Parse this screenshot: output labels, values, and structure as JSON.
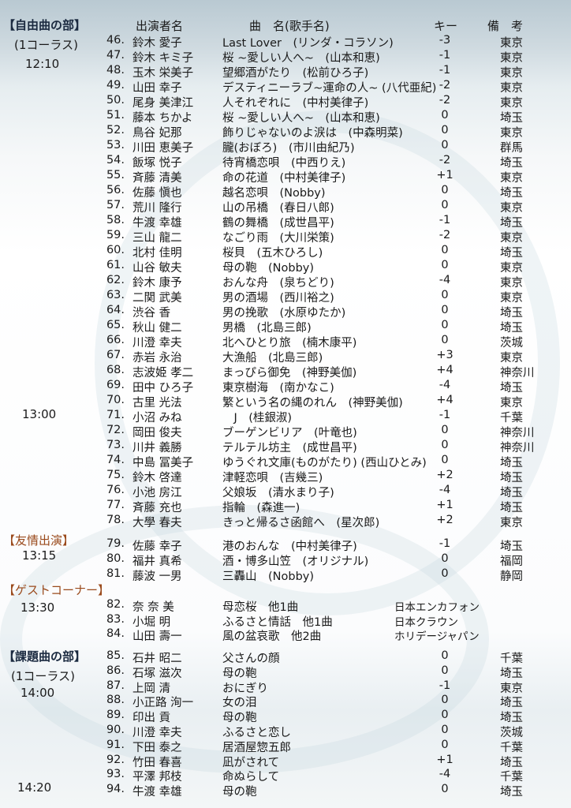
{
  "headers": {
    "performer": "出演者名",
    "song": "曲　名(歌手名)",
    "key": "キー",
    "note": "備　考"
  },
  "left_labels": {
    "free_section": "【自由曲の部】",
    "free_chorus": "(1コーラス)",
    "free_time1": "12:10",
    "free_time2": "13:00",
    "friend_section": "【友情出演】",
    "friend_time": "13:15",
    "guest_section": "【ゲストコーナー】",
    "guest_time": "13:30",
    "task_section": "【課題曲の部】",
    "task_chorus": "(1コーラス)",
    "task_time1": "14:00",
    "task_time2": "14:20"
  },
  "free_rows": [
    {
      "num": "46.",
      "name": "鈴木 愛子",
      "song": "Last Lover　(リンダ・コラソン)",
      "key": "-3",
      "pref": "東京"
    },
    {
      "num": "47.",
      "name": "鈴木 キミ子",
      "song": "桜 ~愛しい人へ~　(山本和恵)",
      "key": "-1",
      "pref": "東京"
    },
    {
      "num": "48.",
      "name": "玉木 栄美子",
      "song": "望郷酒がたり　(松前ひろ子)",
      "key": "-1",
      "pref": "東京"
    },
    {
      "num": "49.",
      "name": "山田 幸子",
      "song": "デスティニーラブ~運命の人~ (八代亜紀)",
      "key": "-2",
      "pref": "東京"
    },
    {
      "num": "50.",
      "name": "尾身 美津江",
      "song": "人それぞれに　(中村美律子)",
      "key": "-2",
      "pref": "東京"
    },
    {
      "num": "51.",
      "name": "藤本 ちかよ",
      "song": "桜 ~愛しい人へ~　(山本和恵)",
      "key": "0",
      "pref": "埼玉"
    },
    {
      "num": "52.",
      "name": "鳥谷 妃那",
      "song": "飾りじゃないのよ涙は　(中森明菜)",
      "key": "0",
      "pref": "東京"
    },
    {
      "num": "53.",
      "name": "川田 恵美子",
      "song": "朧(おぼろ)　(市川由紀乃)",
      "key": "0",
      "pref": "群馬"
    },
    {
      "num": "54.",
      "name": "飯塚 悦子",
      "song": "待宵橋恋唄　(中西りえ)",
      "key": "-2",
      "pref": "埼玉"
    },
    {
      "num": "55.",
      "name": "斉藤 清美",
      "song": "命の花道　(中村美律子)",
      "key": "+1",
      "pref": "東京"
    },
    {
      "num": "56.",
      "name": "佐藤 愼也",
      "song": "越名恋唄　(Nobby)",
      "key": "0",
      "pref": "埼玉"
    },
    {
      "num": "57.",
      "name": "荒川 隆行",
      "song": "山の吊橋　(春日八郎)",
      "key": "0",
      "pref": "東京"
    },
    {
      "num": "58.",
      "name": "牛渡 幸雄",
      "song": "鶴の舞橋　(成世昌平)",
      "key": "-1",
      "pref": "埼玉"
    },
    {
      "num": "59.",
      "name": "三山 龍二",
      "song": "なごり雨　(大川栄策)",
      "key": "-2",
      "pref": "東京"
    },
    {
      "num": "60.",
      "name": "北村 佳明",
      "song": "桜貝　(五木ひろし)",
      "key": "0",
      "pref": "埼玉"
    },
    {
      "num": "61.",
      "name": "山谷 敏夫",
      "song": "母の鞄　(Nobby)",
      "key": "0",
      "pref": "東京"
    },
    {
      "num": "62.",
      "name": "鈴木 康予",
      "song": "おんな舟　(泉ちどり)",
      "key": "-4",
      "pref": "東京"
    },
    {
      "num": "63.",
      "name": "二関 武美",
      "song": "男の酒場　(西川裕之)",
      "key": "0",
      "pref": "東京"
    },
    {
      "num": "64.",
      "name": "渋谷 香",
      "song": "男の挽歌　(水原ゆたか)",
      "key": "0",
      "pref": "埼玉"
    },
    {
      "num": "65.",
      "name": "秋山 健二",
      "song": "男橋　(北島三郎)",
      "key": "0",
      "pref": "埼玉"
    },
    {
      "num": "66.",
      "name": "川澄 幸夫",
      "song": "北へひとり旅　(楠木康平)",
      "key": "0",
      "pref": "茨城"
    },
    {
      "num": "67.",
      "name": "赤岩 永治",
      "song": "大漁船　(北島三郎)",
      "key": "+3",
      "pref": "東京"
    },
    {
      "num": "68.",
      "name": "志波姫 孝二",
      "song": "まっぴら御免　(神野美伽)",
      "key": "+4",
      "pref": "神奈川"
    },
    {
      "num": "69.",
      "name": "田中 ひろ子",
      "song": "東京樹海　(南かなこ)",
      "key": "-4",
      "pref": "埼玉"
    },
    {
      "num": "70.",
      "name": "古里 光法",
      "song": "繁という名の縄のれん　(神野美伽)",
      "key": "+4",
      "pref": "東京"
    },
    {
      "num": "71.",
      "name": "小沼 みね",
      "song": "　J　(桂銀淑)",
      "key": "-1",
      "pref": "千葉"
    },
    {
      "num": "72.",
      "name": "岡田 俊夫",
      "song": "ブーゲンビリア　(叶竜也)",
      "key": "0",
      "pref": "神奈川"
    },
    {
      "num": "73.",
      "name": "川井 義勝",
      "song": "テルテル坊主　(成世昌平)",
      "key": "0",
      "pref": "神奈川"
    },
    {
      "num": "74.",
      "name": "中島 冨美子",
      "song": "ゆうぐれ文庫(ものがたり) (西山ひとみ)",
      "key": "0",
      "pref": "埼玉"
    },
    {
      "num": "75.",
      "name": "鈴木 啓達",
      "song": "津軽恋唄　(吉幾三)",
      "key": "+2",
      "pref": "埼玉"
    },
    {
      "num": "76.",
      "name": "小池 房江",
      "song": "父娘坂　(清水まり子)",
      "key": "-4",
      "pref": "埼玉"
    },
    {
      "num": "77.",
      "name": "斉藤 充也",
      "song": "指輪　(森進一)",
      "key": "+1",
      "pref": "埼玉"
    },
    {
      "num": "78.",
      "name": "大學 春夫",
      "song": "きっと帰るさ函館へ　(星次郎)",
      "key": "+2",
      "pref": "東京"
    }
  ],
  "friend_rows": [
    {
      "num": "79.",
      "name": "佐藤 幸子",
      "song": "港のおんな　(中村美律子)",
      "key": "-1",
      "pref": "埼玉"
    },
    {
      "num": "80.",
      "name": "福井 真希",
      "song": "酒・博多山笠　(オリジナル)",
      "key": "0",
      "pref": "福岡"
    },
    {
      "num": "81.",
      "name": "藤波 一男",
      "song": "三轟山　(Nobby)",
      "key": "0",
      "pref": "静岡"
    }
  ],
  "guest_rows": [
    {
      "num": "82.",
      "name": "奈 奈 美",
      "song": "母恋桜　他1曲",
      "label": "日本エンカフォン"
    },
    {
      "num": "83.",
      "name": "小堀 明",
      "song": "ふるさと情話　他1曲",
      "label": "日本クラウン"
    },
    {
      "num": "84.",
      "name": "山田 壽一",
      "song": "風の盆哀歌　他2曲",
      "label": "ホリデージャパン"
    }
  ],
  "task_rows": [
    {
      "num": "85.",
      "name": "石井 昭二",
      "song": "父さんの顔",
      "key": "0",
      "pref": "千葉"
    },
    {
      "num": "86.",
      "name": "石塚 滋次",
      "song": "母の鞄",
      "key": "0",
      "pref": "埼玉"
    },
    {
      "num": "87.",
      "name": "上岡 清",
      "song": "おにぎり",
      "key": "-1",
      "pref": "東京"
    },
    {
      "num": "88.",
      "name": "小正路 洵一",
      "song": "女の泪",
      "key": "0",
      "pref": "埼玉"
    },
    {
      "num": "89.",
      "name": "印出 貢",
      "song": "母の鞄",
      "key": "0",
      "pref": "埼玉"
    },
    {
      "num": "90.",
      "name": "川澄 幸夫",
      "song": "ふるさと恋し",
      "key": "0",
      "pref": "茨城"
    },
    {
      "num": "91.",
      "name": "下田 泰之",
      "song": "居酒屋惣五郎",
      "key": "0",
      "pref": "千葉"
    },
    {
      "num": "92.",
      "name": "竹田 春喜",
      "song": "凪がされて",
      "key": "+1",
      "pref": "埼玉"
    },
    {
      "num": "93.",
      "name": "平澤 邦枝",
      "song": "命ぬらして",
      "key": "-4",
      "pref": "千葉"
    },
    {
      "num": "94.",
      "name": "牛渡 幸雄",
      "song": "母の鞄",
      "key": "0",
      "pref": "埼玉"
    }
  ]
}
